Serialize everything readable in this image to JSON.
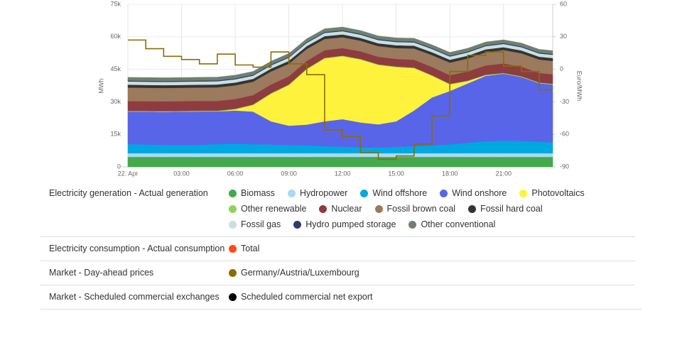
{
  "chart_data": {
    "type": "area",
    "stacked": true,
    "y_label": "MWh",
    "y2_label": "Euro/MWh",
    "grid": true,
    "x": [
      0,
      1,
      2,
      3,
      4,
      5,
      6,
      7,
      8,
      9,
      10,
      11,
      12,
      13,
      14,
      15,
      16,
      17,
      18,
      19,
      20,
      21,
      22,
      23,
      23.75
    ],
    "xlim": [
      0,
      23.75
    ],
    "xticks": [
      {
        "value": 0,
        "label": "22. Apr"
      },
      {
        "value": 3,
        "label": "03:00"
      },
      {
        "value": 6,
        "label": "06:00"
      },
      {
        "value": 9,
        "label": "09:00"
      },
      {
        "value": 12,
        "label": "12:00"
      },
      {
        "value": 15,
        "label": "15:00"
      },
      {
        "value": 18,
        "label": "18:00"
      },
      {
        "value": 21,
        "label": "21:00"
      }
    ],
    "ylim": [
      0,
      75000
    ],
    "yticks": [
      0,
      {
        "value": 15000,
        "label": "15k"
      },
      {
        "value": 30000,
        "label": "30k"
      },
      {
        "value": 45000,
        "label": "45k"
      },
      {
        "value": 60000,
        "label": "60k"
      },
      {
        "value": 75000,
        "label": "75k"
      }
    ],
    "y2lim": [
      -90,
      60
    ],
    "y2ticks": [
      -90,
      -60,
      -30,
      0,
      30,
      60
    ],
    "groups": [
      {
        "label": "Electricity generation - Actual generation",
        "series": [
          {
            "name": "Biomass",
            "color": "#43a94a",
            "values": [
              4600,
              4600,
              4600,
              4600,
              4600,
              4600,
              4600,
              4600,
              4600,
              4600,
              4600,
              4600,
              4600,
              4600,
              4600,
              4600,
              4600,
              4600,
              4600,
              4600,
              4600,
              4600,
              4600,
              4600,
              4600
            ]
          },
          {
            "name": "Hydropower",
            "color": "#a9dbf3",
            "values": [
              1700,
              1700,
              1700,
              1700,
              1700,
              1700,
              1700,
              1700,
              1700,
              1700,
              1700,
              1700,
              1700,
              1700,
              1700,
              1700,
              1700,
              1700,
              1700,
              1700,
              1700,
              1700,
              1700,
              1700,
              1700
            ]
          },
          {
            "name": "Wind offshore",
            "color": "#00a8e1",
            "values": [
              4200,
              4000,
              3900,
              3800,
              3900,
              4200,
              4300,
              4200,
              4000,
              3800,
              3600,
              3200,
              3000,
              2700,
              2600,
              2900,
              3200,
              3600,
              4100,
              4800,
              5500,
              5800,
              5600,
              5200,
              5000
            ]
          },
          {
            "name": "Wind onshore",
            "color": "#5865e8",
            "values": [
              15000,
              15200,
              15200,
              15400,
              15400,
              15100,
              15400,
              15000,
              10700,
              8900,
              9600,
              11500,
              12700,
              11500,
              10700,
              11800,
              16500,
              22100,
              24600,
              27400,
              30200,
              30900,
              29600,
              27100,
              26700
            ]
          },
          {
            "name": "Photovoltaics",
            "color": "#fff23c",
            "values": [
              0,
              0,
              0,
              0,
              0,
              0,
              500,
              3000,
              12700,
              18700,
              25500,
              29000,
              29000,
              29000,
              27400,
              25000,
              19500,
              10000,
              3000,
              1000,
              200,
              0,
              0,
              0,
              0
            ]
          },
          {
            "name": "Other renewable",
            "color": "#8fd25c",
            "values": [
              300,
              300,
              300,
              300,
              300,
              300,
              300,
              300,
              300,
              300,
              300,
              300,
              300,
              300,
              300,
              300,
              300,
              300,
              300,
              300,
              300,
              300,
              300,
              300,
              300
            ]
          },
          {
            "name": "Nuclear",
            "color": "#8e3c40",
            "values": [
              4500,
              4500,
              4500,
              4500,
              4500,
              4500,
              4500,
              4300,
              4000,
              3800,
              3600,
              3500,
              3500,
              3500,
              3500,
              3500,
              3600,
              3800,
              4000,
              4200,
              4300,
              4400,
              4400,
              4400,
              4400
            ]
          },
          {
            "name": "Fossil brown coal",
            "color": "#9b7a5d",
            "values": [
              6300,
              6200,
              6200,
              6200,
              6200,
              6300,
              6300,
              6200,
              6000,
              5800,
              5500,
              5200,
              5000,
              4900,
              4900,
              5000,
              5200,
              5500,
              5800,
              6000,
              6100,
              6200,
              6200,
              6200,
              6200
            ]
          },
          {
            "name": "Fossil hard coal",
            "color": "#333333",
            "values": [
              1300,
              1300,
              1300,
              1300,
              1300,
              1300,
              1300,
              1300,
              1300,
              1300,
              1300,
              1300,
              1300,
              1300,
              1300,
              1300,
              1300,
              1300,
              1300,
              1300,
              1300,
              1300,
              1300,
              1300,
              1300
            ]
          },
          {
            "name": "Fossil gas",
            "color": "#c9dfe2",
            "values": [
              1500,
              1500,
              1500,
              1500,
              1500,
              1500,
              1500,
              1500,
              1500,
              1500,
              1500,
              1500,
              1500,
              1500,
              1500,
              1500,
              1500,
              1500,
              1500,
              1500,
              1500,
              1500,
              1500,
              1500,
              1500
            ]
          },
          {
            "name": "Hydro pumped storage",
            "color": "#2c3d6a",
            "values": [
              400,
              400,
              400,
              400,
              400,
              400,
              400,
              400,
              400,
              400,
              400,
              400,
              400,
              400,
              400,
              400,
              400,
              400,
              400,
              400,
              400,
              400,
              400,
              400,
              400
            ]
          },
          {
            "name": "Other conventional",
            "color": "#6f8070",
            "values": [
              1500,
              1500,
              1500,
              1500,
              1500,
              1500,
              1500,
              1500,
              1500,
              1500,
              1500,
              1500,
              1500,
              1500,
              1500,
              1500,
              1500,
              1500,
              1500,
              1500,
              1500,
              1500,
              1500,
              1500,
              1500
            ]
          }
        ]
      },
      {
        "label": "Electricity consumption - Actual consumption",
        "series": [
          {
            "name": "Total",
            "color": "#ff4a12"
          }
        ]
      },
      {
        "label": "Market - Day-ahead prices",
        "series": [
          {
            "name": "Germany/Austria/Luxembourg",
            "color": "#8a6d00",
            "axis": "y2",
            "line_shape": "step",
            "values": [
              27,
              19,
              12,
              9,
              5,
              14,
              4,
              2,
              16,
              5,
              -5,
              -56,
              -62,
              -77,
              -83,
              -80,
              -69,
              -43,
              -2,
              13,
              16,
              3,
              -2,
              -19,
              -19
            ]
          }
        ]
      },
      {
        "label": "Market - Scheduled commercial exchanges",
        "series": [
          {
            "name": "Scheduled commercial net export",
            "color": "#000000"
          }
        ]
      }
    ]
  }
}
